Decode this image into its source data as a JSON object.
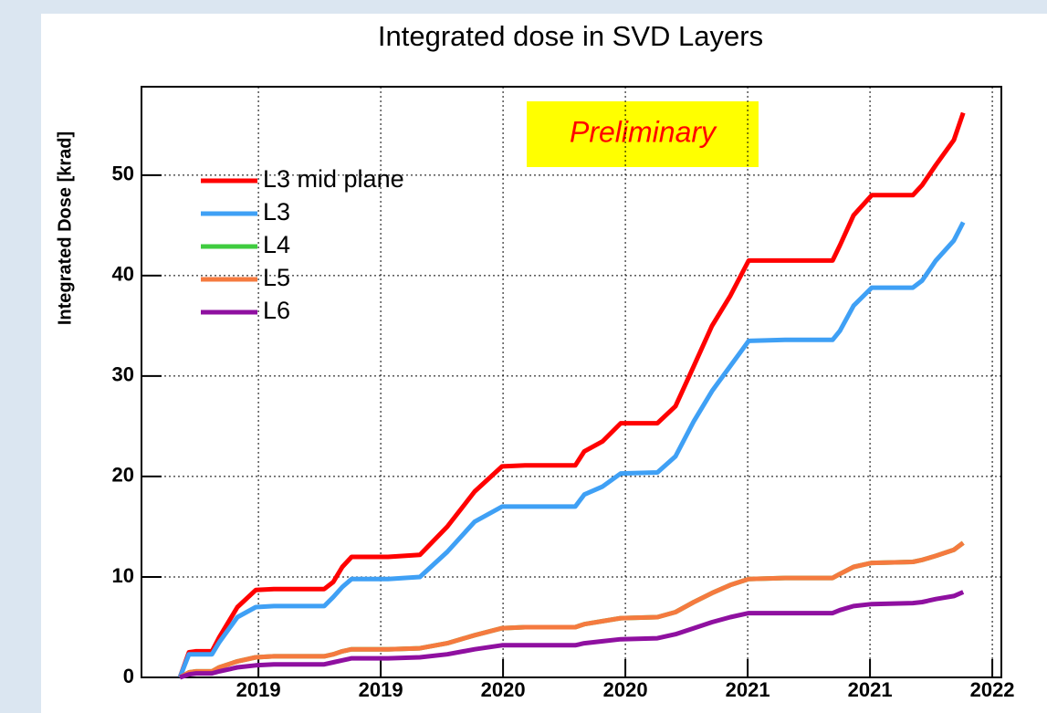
{
  "chart_data": {
    "type": "line",
    "title": "Integrated dose in SVD Layers",
    "y_label": "Integrated Dose [krad]",
    "annotation": "Preliminary",
    "xlim": [
      2019.022,
      2022.537
    ],
    "ylim": [
      0,
      58.8
    ],
    "xticks": [
      {
        "value": 2019.5,
        "label": "2019"
      },
      {
        "value": 2020.0,
        "label": "2019"
      },
      {
        "value": 2020.5,
        "label": "2020"
      },
      {
        "value": 2021.0,
        "label": "2020"
      },
      {
        "value": 2021.5,
        "label": "2021"
      },
      {
        "value": 2022.0,
        "label": "2021"
      },
      {
        "value": 2022.5,
        "label": "2022"
      }
    ],
    "yticks": [
      0,
      10,
      20,
      30,
      40,
      50
    ],
    "grid": true,
    "legend": "upper left",
    "x": [
      2019.179,
      2019.216,
      2019.246,
      2019.31,
      2019.34,
      2019.414,
      2019.489,
      2019.563,
      2019.769,
      2019.806,
      2019.843,
      2019.881,
      2020.03,
      2020.16,
      2020.272,
      2020.384,
      2020.496,
      2020.59,
      2020.72,
      2020.795,
      2020.832,
      2020.907,
      2020.981,
      2021.131,
      2021.205,
      2021.28,
      2021.354,
      2021.429,
      2021.504,
      2021.653,
      2021.847,
      2021.877,
      2021.933,
      2022.007,
      2022.175,
      2022.213,
      2022.269,
      2022.343,
      2022.381
    ],
    "series": [
      {
        "name": "L3 mid plane",
        "color": "#ff0000",
        "values": [
          0,
          2.5,
          2.6,
          2.6,
          4,
          7,
          8.7,
          8.8,
          8.8,
          9.5,
          11,
          12,
          12,
          12.2,
          15,
          18.5,
          21,
          21.1,
          21.1,
          21.1,
          22.5,
          23.5,
          25.3,
          25.3,
          27,
          31,
          35,
          38,
          41.5,
          41.5,
          41.5,
          43,
          46,
          48,
          48,
          49,
          51,
          53.5,
          56.2
        ]
      },
      {
        "name": "L3",
        "color": "#3fa0f5",
        "values": [
          0,
          2.3,
          2.3,
          2.3,
          3.5,
          6,
          7,
          7.1,
          7.1,
          8,
          9,
          9.8,
          9.8,
          10,
          12.5,
          15.5,
          17,
          17,
          17,
          17,
          18.2,
          19,
          20.3,
          20.4,
          22,
          25.5,
          28.5,
          31,
          33.5,
          33.6,
          33.6,
          34.5,
          37,
          38.8,
          38.8,
          39.5,
          41.5,
          43.5,
          45.3
        ]
      },
      {
        "name": "L4",
        "color": "#3fcc3f",
        "values": [
          0,
          0.5,
          0.6,
          0.6,
          1,
          1.6,
          2,
          2.1,
          2.1,
          2.3,
          2.6,
          2.8,
          2.8,
          2.9,
          3.4,
          4.2,
          4.9,
          5,
          5,
          5,
          5.3,
          5.6,
          5.9,
          6,
          6.5,
          7.5,
          8.4,
          9.2,
          9.8,
          9.9,
          9.9,
          10.3,
          11,
          11.4,
          11.5,
          11.7,
          12.1,
          12.7,
          13.4
        ]
      },
      {
        "name": "L5",
        "color": "#f57a3f",
        "values": [
          0,
          0.5,
          0.6,
          0.6,
          1,
          1.6,
          2,
          2.1,
          2.1,
          2.3,
          2.6,
          2.8,
          2.8,
          2.9,
          3.4,
          4.2,
          4.9,
          5,
          5,
          5,
          5.3,
          5.6,
          5.9,
          6,
          6.5,
          7.5,
          8.4,
          9.2,
          9.8,
          9.9,
          9.9,
          10.3,
          11,
          11.4,
          11.5,
          11.7,
          12.1,
          12.7,
          13.4
        ]
      },
      {
        "name": "L6",
        "color": "#8f10a0",
        "values": [
          0,
          0.3,
          0.4,
          0.4,
          0.6,
          1,
          1.2,
          1.3,
          1.3,
          1.5,
          1.7,
          1.9,
          1.9,
          2,
          2.3,
          2.8,
          3.2,
          3.2,
          3.2,
          3.2,
          3.4,
          3.6,
          3.8,
          3.9,
          4.3,
          4.9,
          5.5,
          6,
          6.4,
          6.4,
          6.4,
          6.7,
          7.1,
          7.3,
          7.4,
          7.5,
          7.8,
          8.1,
          8.5
        ]
      }
    ]
  }
}
